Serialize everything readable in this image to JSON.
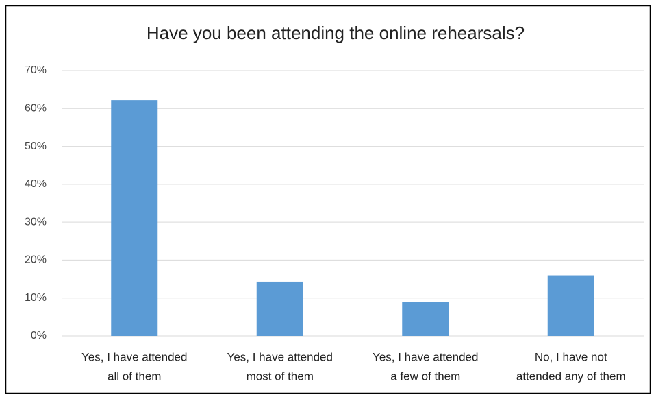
{
  "chart_data": {
    "type": "bar",
    "title": "Have you been attending the online rehearsals?",
    "categories": [
      [
        "Yes, I have attended",
        "all of them"
      ],
      [
        "Yes, I have attended",
        "most of them"
      ],
      [
        "Yes, I have attended",
        "a few of them"
      ],
      [
        "No, I have not",
        "attended any of them"
      ]
    ],
    "values": [
      62.2,
      14.3,
      9,
      16
    ],
    "color": "#5b9bd5",
    "ylim": [
      0,
      70
    ],
    "yticks": [
      {
        "value": 0,
        "label": "0%"
      },
      {
        "value": 10,
        "label": "10%"
      },
      {
        "value": 20,
        "label": "20%"
      },
      {
        "value": 30,
        "label": "30%"
      },
      {
        "value": 40,
        "label": "40%"
      },
      {
        "value": 50,
        "label": "50%"
      },
      {
        "value": 60,
        "label": "60%"
      },
      {
        "value": 70,
        "label": "70%"
      }
    ],
    "grid": true
  }
}
